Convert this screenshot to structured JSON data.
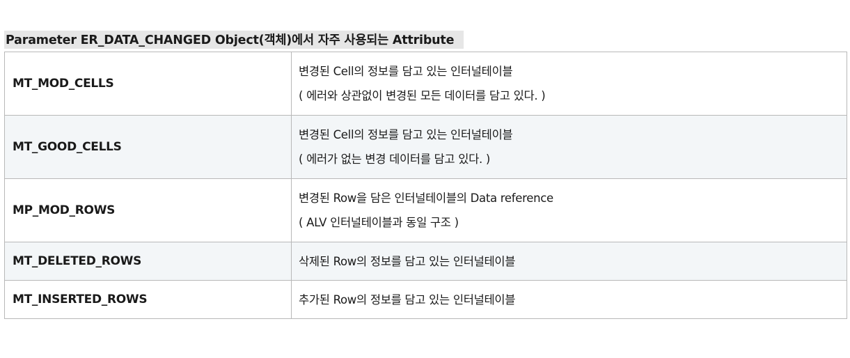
{
  "title": "Parameter ER_DATA_CHANGED Object(객체)에서 자주 사용되는 Attribute",
  "rows": [
    {
      "name": "MT_MOD_CELLS",
      "desc": [
        "변경된 Cell의 정보를 담고 있는 인터널테이블",
        "( 에러와 상관없이 변경된 모든 데이터를 담고 있다. )"
      ]
    },
    {
      "name": "MT_GOOD_CELLS",
      "desc": [
        "변경된 Cell의 정보를 담고 있는 인터널테이블",
        "( 에러가 없는 변경 데이터를 담고 있다. )"
      ]
    },
    {
      "name": "MP_MOD_ROWS",
      "desc": [
        "변경된 Row을 담은 인터널테이블의 Data reference",
        "( ALV 인터널테이블과 동일 구조 )"
      ]
    },
    {
      "name": "MT_DELETED_ROWS",
      "desc": [
        "삭제된 Row의 정보를 담고 있는 인터널테이블"
      ]
    },
    {
      "name": "MT_INSERTED_ROWS",
      "desc": [
        "추가된 Row의 정보를 담고 있는 인터널테이블"
      ]
    }
  ]
}
